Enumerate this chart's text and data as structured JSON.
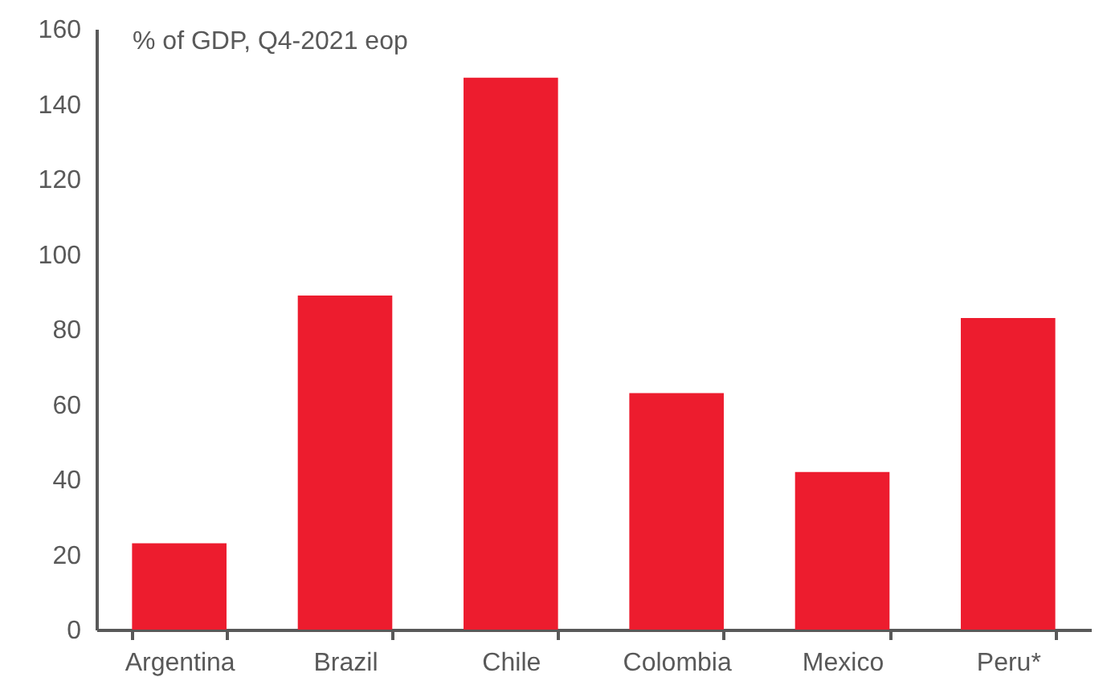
{
  "chart_data": {
    "type": "bar",
    "ylabel": "% of GDP, Q4-2021 eop",
    "categories": [
      "Argentina",
      "Brazil",
      "Chile",
      "Colombia",
      "Mexico",
      "Peru*"
    ],
    "values": [
      23,
      89,
      147,
      63,
      42,
      83
    ],
    "color": "#ed1c2e",
    "ylim": [
      0,
      160
    ],
    "yticks": [
      0,
      20,
      40,
      60,
      80,
      100,
      120,
      140,
      160
    ]
  }
}
